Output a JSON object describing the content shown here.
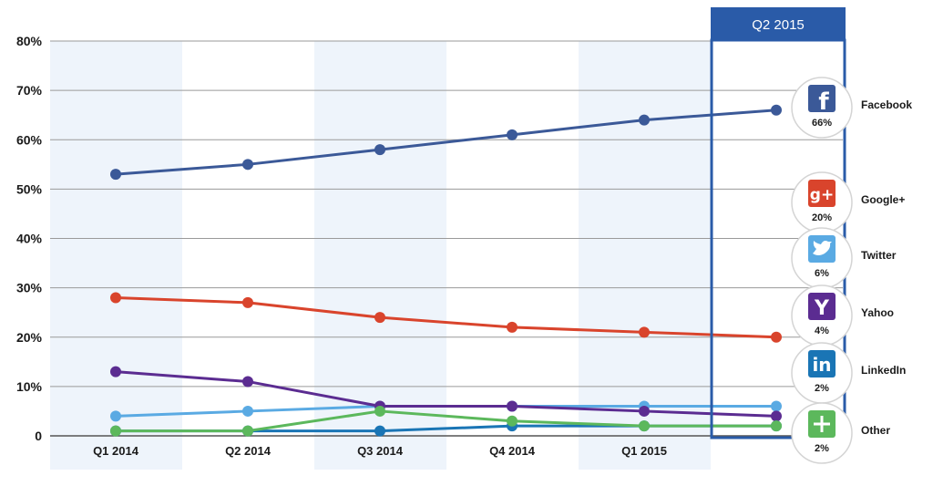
{
  "chart_data": {
    "type": "line",
    "title": "",
    "xlabel": "",
    "ylabel": "",
    "categories": [
      "Q1 2014",
      "Q2 2014",
      "Q3 2014",
      "Q4 2014",
      "Q1 2015",
      "Q2 2015"
    ],
    "x_tick_labels": [
      "Q1 2014",
      "Q2 2014",
      "Q3 2014",
      "Q4 2014",
      "Q1 2015"
    ],
    "highlight_label": "Q2 2015",
    "y_ticks": [
      0,
      10,
      20,
      30,
      40,
      50,
      60,
      70,
      80
    ],
    "y_tick_labels": [
      "0",
      "10%",
      "20%",
      "30%",
      "40%",
      "50%",
      "60%",
      "70%",
      "80%"
    ],
    "ylim": [
      0,
      80
    ],
    "grid": true,
    "legend_position": "right",
    "series": [
      {
        "name": "Facebook",
        "color": "#3b5998",
        "values": [
          53,
          55,
          58,
          61,
          64,
          66
        ],
        "pct_label": "66%",
        "icon": "facebook-icon"
      },
      {
        "name": "Google+",
        "color": "#d9442c",
        "values": [
          28,
          27,
          24,
          22,
          21,
          20
        ],
        "pct_label": "20%",
        "icon": "google-plus-icon"
      },
      {
        "name": "Twitter",
        "color": "#5aaae3",
        "values": [
          4,
          5,
          6,
          6,
          6,
          6
        ],
        "pct_label": "6%",
        "icon": "twitter-icon"
      },
      {
        "name": "Yahoo",
        "color": "#5b2c91",
        "values": [
          13,
          11,
          6,
          6,
          5,
          4
        ],
        "pct_label": "4%",
        "icon": "yahoo-icon"
      },
      {
        "name": "LinkedIn",
        "color": "#1a75b5",
        "values": [
          1,
          1,
          1,
          2,
          2,
          2
        ],
        "pct_label": "2%",
        "icon": "linkedin-icon"
      },
      {
        "name": "Other",
        "color": "#5cb85c",
        "values": [
          1,
          1,
          5,
          3,
          2,
          2
        ],
        "pct_label": "2%",
        "icon": "plus-icon"
      }
    ],
    "colors": {
      "band": "#eef4fb",
      "grid": "#9a9a9a",
      "highlight": "#2a5ba8"
    }
  }
}
